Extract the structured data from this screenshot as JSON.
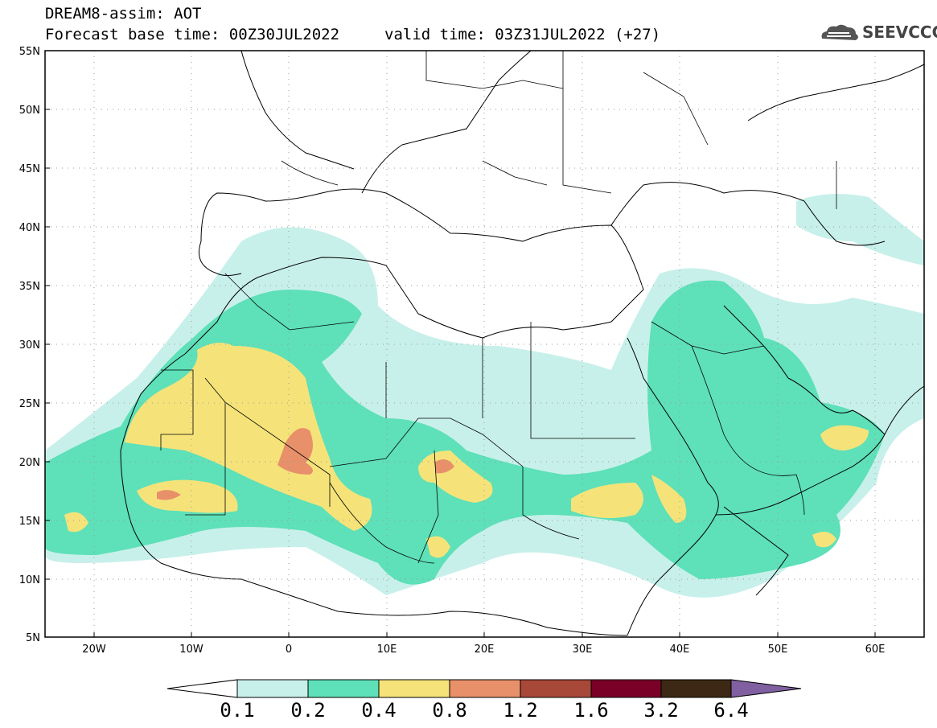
{
  "header": {
    "title": "DREAM8-assim: AOT",
    "base_time": "Forecast base time: 00Z30JUL2022",
    "valid_time": "valid time: 03Z31JUL2022 (+27)"
  },
  "logo": {
    "text": "SEEVCCC",
    "icon": "cloud-icon"
  },
  "axes": {
    "lat_labels": [
      "55N",
      "50N",
      "45N",
      "40N",
      "35N",
      "30N",
      "25N",
      "20N",
      "15N",
      "10N",
      "5N"
    ],
    "lon_labels": [
      "20W",
      "10W",
      "0",
      "10E",
      "20E",
      "30E",
      "40E",
      "50E",
      "60E"
    ]
  },
  "colorbar": {
    "labels": [
      "0.1",
      "0.2",
      "0.4",
      "0.8",
      "1.2",
      "1.6",
      "3.2",
      "6.4"
    ],
    "colors": [
      "#ffffff",
      "#c8f0ea",
      "#5ee0b8",
      "#f5e37a",
      "#e8906a",
      "#a84838",
      "#7a0028",
      "#3c2814",
      "#8060a0"
    ]
  }
}
